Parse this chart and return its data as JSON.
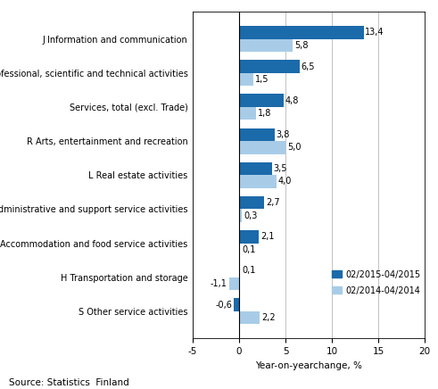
{
  "categories": [
    "S Other service activities",
    "H Transportation and storage",
    "I Accommodation and food service activities",
    "N Administrative and support service activities",
    "L Real estate activities",
    "R Arts, entertainment and recreation",
    "Services, total (excl. Trade)",
    "M Professional, scientific and technical activities",
    "J Information and communication"
  ],
  "values_2015": [
    -0.6,
    0.1,
    2.1,
    2.7,
    3.5,
    3.8,
    4.8,
    6.5,
    13.4
  ],
  "values_2014": [
    2.2,
    -1.1,
    0.1,
    0.3,
    4.0,
    5.0,
    1.8,
    1.5,
    5.8
  ],
  "color_2015": "#1B6AAA",
  "color_2014": "#A8CCE8",
  "xlabel": "Year-on-yearchange, %",
  "source": "Source: Statistics  Finland",
  "legend_2015": "02/2015-04/2015",
  "legend_2014": "02/2014-04/2014",
  "xlim": [
    -5,
    20
  ],
  "xticks": [
    -5,
    0,
    5,
    10,
    15,
    20
  ],
  "bar_height": 0.38,
  "label_fontsize": 7.0,
  "tick_fontsize": 7.5,
  "source_fontsize": 7.5
}
